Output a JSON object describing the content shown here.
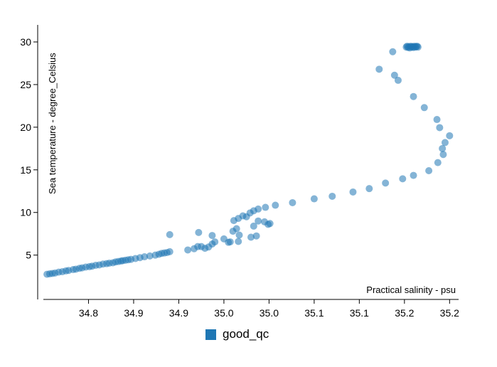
{
  "chart_data": {
    "type": "scatter",
    "xlabel": "Practical salinity - psu",
    "ylabel": "Sea temperature - degree_Celsius",
    "xlim": [
      34.75,
      35.21
    ],
    "ylim": [
      -0.2,
      32
    ],
    "x_ticks": [
      34.8,
      34.85,
      34.9,
      34.95,
      35.0,
      35.05,
      35.1,
      35.15,
      35.2
    ],
    "x_tick_labels": [
      "34.8",
      "34.9",
      "34.9",
      "35.0",
      "35.0",
      "35.1",
      "35.1",
      "35.2",
      "35.2"
    ],
    "y_ticks": [
      5,
      10,
      15,
      20,
      25,
      30
    ],
    "y_tick_labels": [
      "5",
      "10",
      "15",
      "20",
      "25",
      "30"
    ],
    "grid": false,
    "legend": "bottom-center",
    "series": [
      {
        "name": "good_qc",
        "color": "#1f77b4",
        "opacity": 0.55,
        "points": [
          [
            34.754,
            2.75
          ],
          [
            34.757,
            2.8
          ],
          [
            34.76,
            2.85
          ],
          [
            34.763,
            2.9
          ],
          [
            34.767,
            3.0
          ],
          [
            34.771,
            3.05
          ],
          [
            34.775,
            3.15
          ],
          [
            34.778,
            3.2
          ],
          [
            34.783,
            3.3
          ],
          [
            34.786,
            3.35
          ],
          [
            34.79,
            3.45
          ],
          [
            34.793,
            3.5
          ],
          [
            34.797,
            3.6
          ],
          [
            34.801,
            3.65
          ],
          [
            34.804,
            3.7
          ],
          [
            34.808,
            3.8
          ],
          [
            34.812,
            3.85
          ],
          [
            34.816,
            3.95
          ],
          [
            34.82,
            4.0
          ],
          [
            34.823,
            4.05
          ],
          [
            34.827,
            4.1
          ],
          [
            34.83,
            4.2
          ],
          [
            34.833,
            4.25
          ],
          [
            34.836,
            4.3
          ],
          [
            34.838,
            4.35
          ],
          [
            34.841,
            4.4
          ],
          [
            34.844,
            4.45
          ],
          [
            34.847,
            4.5
          ],
          [
            34.852,
            4.6
          ],
          [
            34.857,
            4.7
          ],
          [
            34.862,
            4.8
          ],
          [
            34.868,
            4.9
          ],
          [
            34.874,
            5.0
          ],
          [
            34.878,
            5.1
          ],
          [
            34.881,
            5.2
          ],
          [
            34.884,
            5.25
          ],
          [
            34.887,
            5.3
          ],
          [
            34.89,
            5.4
          ],
          [
            34.89,
            7.4
          ],
          [
            34.91,
            5.6
          ],
          [
            34.917,
            5.75
          ],
          [
            34.921,
            6.0
          ],
          [
            34.925,
            6.0
          ],
          [
            34.929,
            5.8
          ],
          [
            34.933,
            5.95
          ],
          [
            34.937,
            6.3
          ],
          [
            34.94,
            6.55
          ],
          [
            34.937,
            7.3
          ],
          [
            34.922,
            7.65
          ],
          [
            34.95,
            6.9
          ],
          [
            34.955,
            6.5
          ],
          [
            34.957,
            6.55
          ],
          [
            34.96,
            7.8
          ],
          [
            34.964,
            8.1
          ],
          [
            34.967,
            7.35
          ],
          [
            34.966,
            6.6
          ],
          [
            34.961,
            9.05
          ],
          [
            34.966,
            9.3
          ],
          [
            34.971,
            9.6
          ],
          [
            34.975,
            9.5
          ],
          [
            34.979,
            9.95
          ],
          [
            34.983,
            10.2
          ],
          [
            34.988,
            10.4
          ],
          [
            34.996,
            10.6
          ],
          [
            35.007,
            10.85
          ],
          [
            34.98,
            7.1
          ],
          [
            34.986,
            7.25
          ],
          [
            34.983,
            8.4
          ],
          [
            34.988,
            9.0
          ],
          [
            34.995,
            8.9
          ],
          [
            34.999,
            8.6
          ],
          [
            35.001,
            8.7
          ],
          [
            35.026,
            11.15
          ],
          [
            35.05,
            11.6
          ],
          [
            35.07,
            11.9
          ],
          [
            35.093,
            12.4
          ],
          [
            35.111,
            12.8
          ],
          [
            35.129,
            13.45
          ],
          [
            35.148,
            13.95
          ],
          [
            35.16,
            14.35
          ],
          [
            35.177,
            14.9
          ],
          [
            35.187,
            15.85
          ],
          [
            35.2,
            19.0
          ],
          [
            35.195,
            18.2
          ],
          [
            35.192,
            17.5
          ],
          [
            35.193,
            16.8
          ],
          [
            35.189,
            19.95
          ],
          [
            35.186,
            20.9
          ],
          [
            35.172,
            22.3
          ],
          [
            35.16,
            23.6
          ],
          [
            35.143,
            25.5
          ],
          [
            35.139,
            26.1
          ],
          [
            35.137,
            28.85
          ],
          [
            35.122,
            26.8
          ],
          [
            35.152,
            29.4
          ],
          [
            35.153,
            29.5
          ],
          [
            35.154,
            29.35
          ],
          [
            35.155,
            29.45
          ],
          [
            35.156,
            29.3
          ],
          [
            35.157,
            29.5
          ],
          [
            35.158,
            29.4
          ],
          [
            35.159,
            29.45
          ],
          [
            35.16,
            29.35
          ],
          [
            35.161,
            29.5
          ],
          [
            35.162,
            29.4
          ],
          [
            35.163,
            29.45
          ],
          [
            35.164,
            29.5
          ],
          [
            35.165,
            29.4
          ]
        ]
      }
    ]
  }
}
